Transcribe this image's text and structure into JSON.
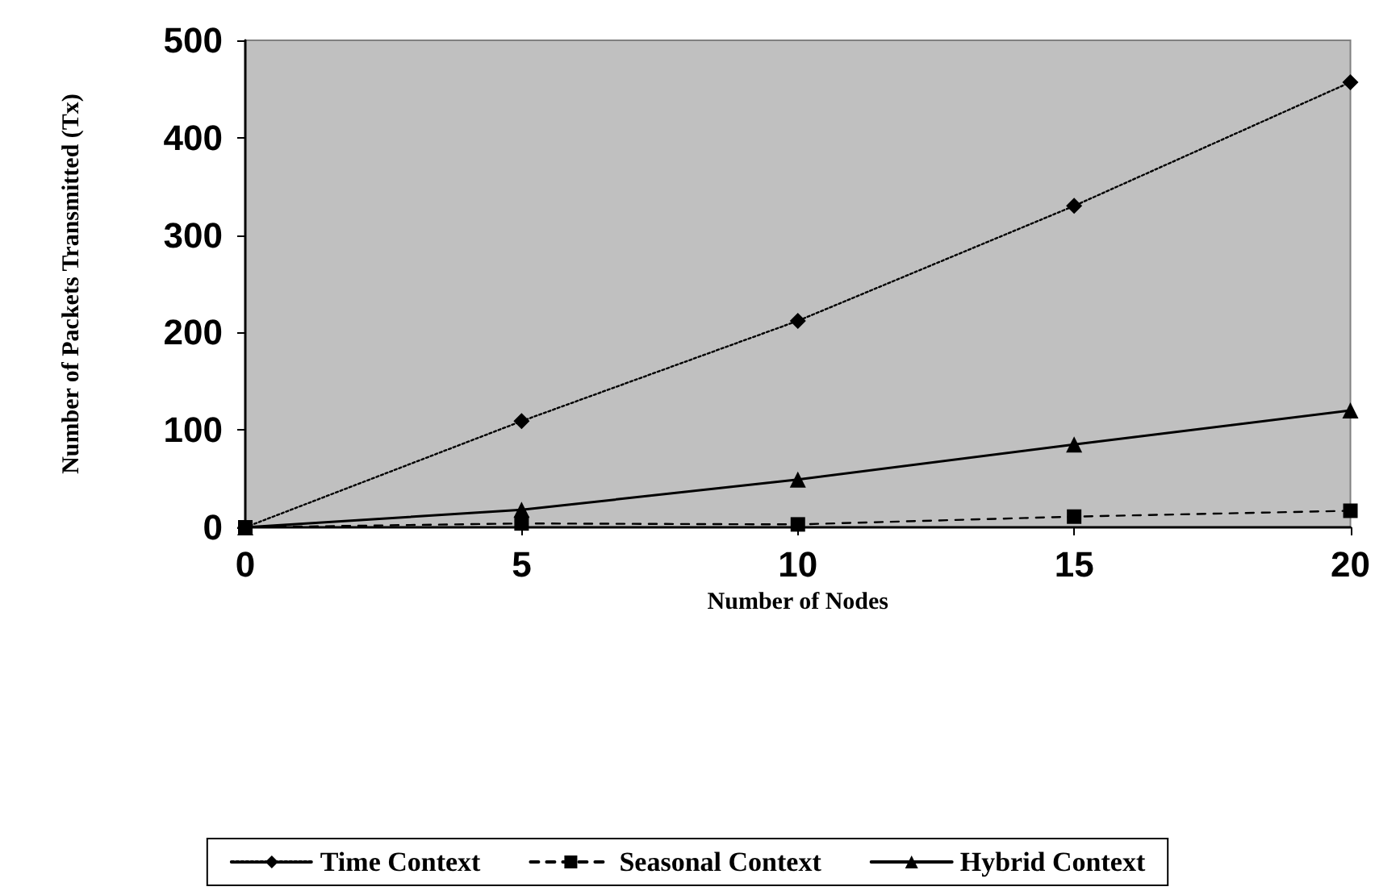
{
  "chart_data": {
    "type": "line",
    "xlabel": "Number of Nodes",
    "ylabel": "Number of Packets Transmitted (Tx)",
    "x": [
      0,
      5,
      10,
      15,
      20
    ],
    "xlim": [
      0,
      20
    ],
    "xticks": [
      0,
      5,
      10,
      15,
      20
    ],
    "ylim": [
      0,
      500
    ],
    "yticks": [
      0,
      100,
      200,
      300,
      400,
      500
    ],
    "grid": false,
    "legend": "bottom",
    "series": [
      {
        "name": "Time Context",
        "color": "#000000",
        "marker": "diamond",
        "line_style": "dotted",
        "values": [
          0,
          109,
          212,
          330,
          457
        ]
      },
      {
        "name": "Seasonal Context",
        "color": "#000000",
        "marker": "square",
        "line_style": "dashed",
        "values": [
          0,
          4,
          3,
          11,
          17
        ]
      },
      {
        "name": "Hybrid Context",
        "color": "#000000",
        "marker": "triangle",
        "line_style": "solid",
        "values": [
          0,
          18,
          49,
          85,
          120
        ]
      }
    ]
  }
}
